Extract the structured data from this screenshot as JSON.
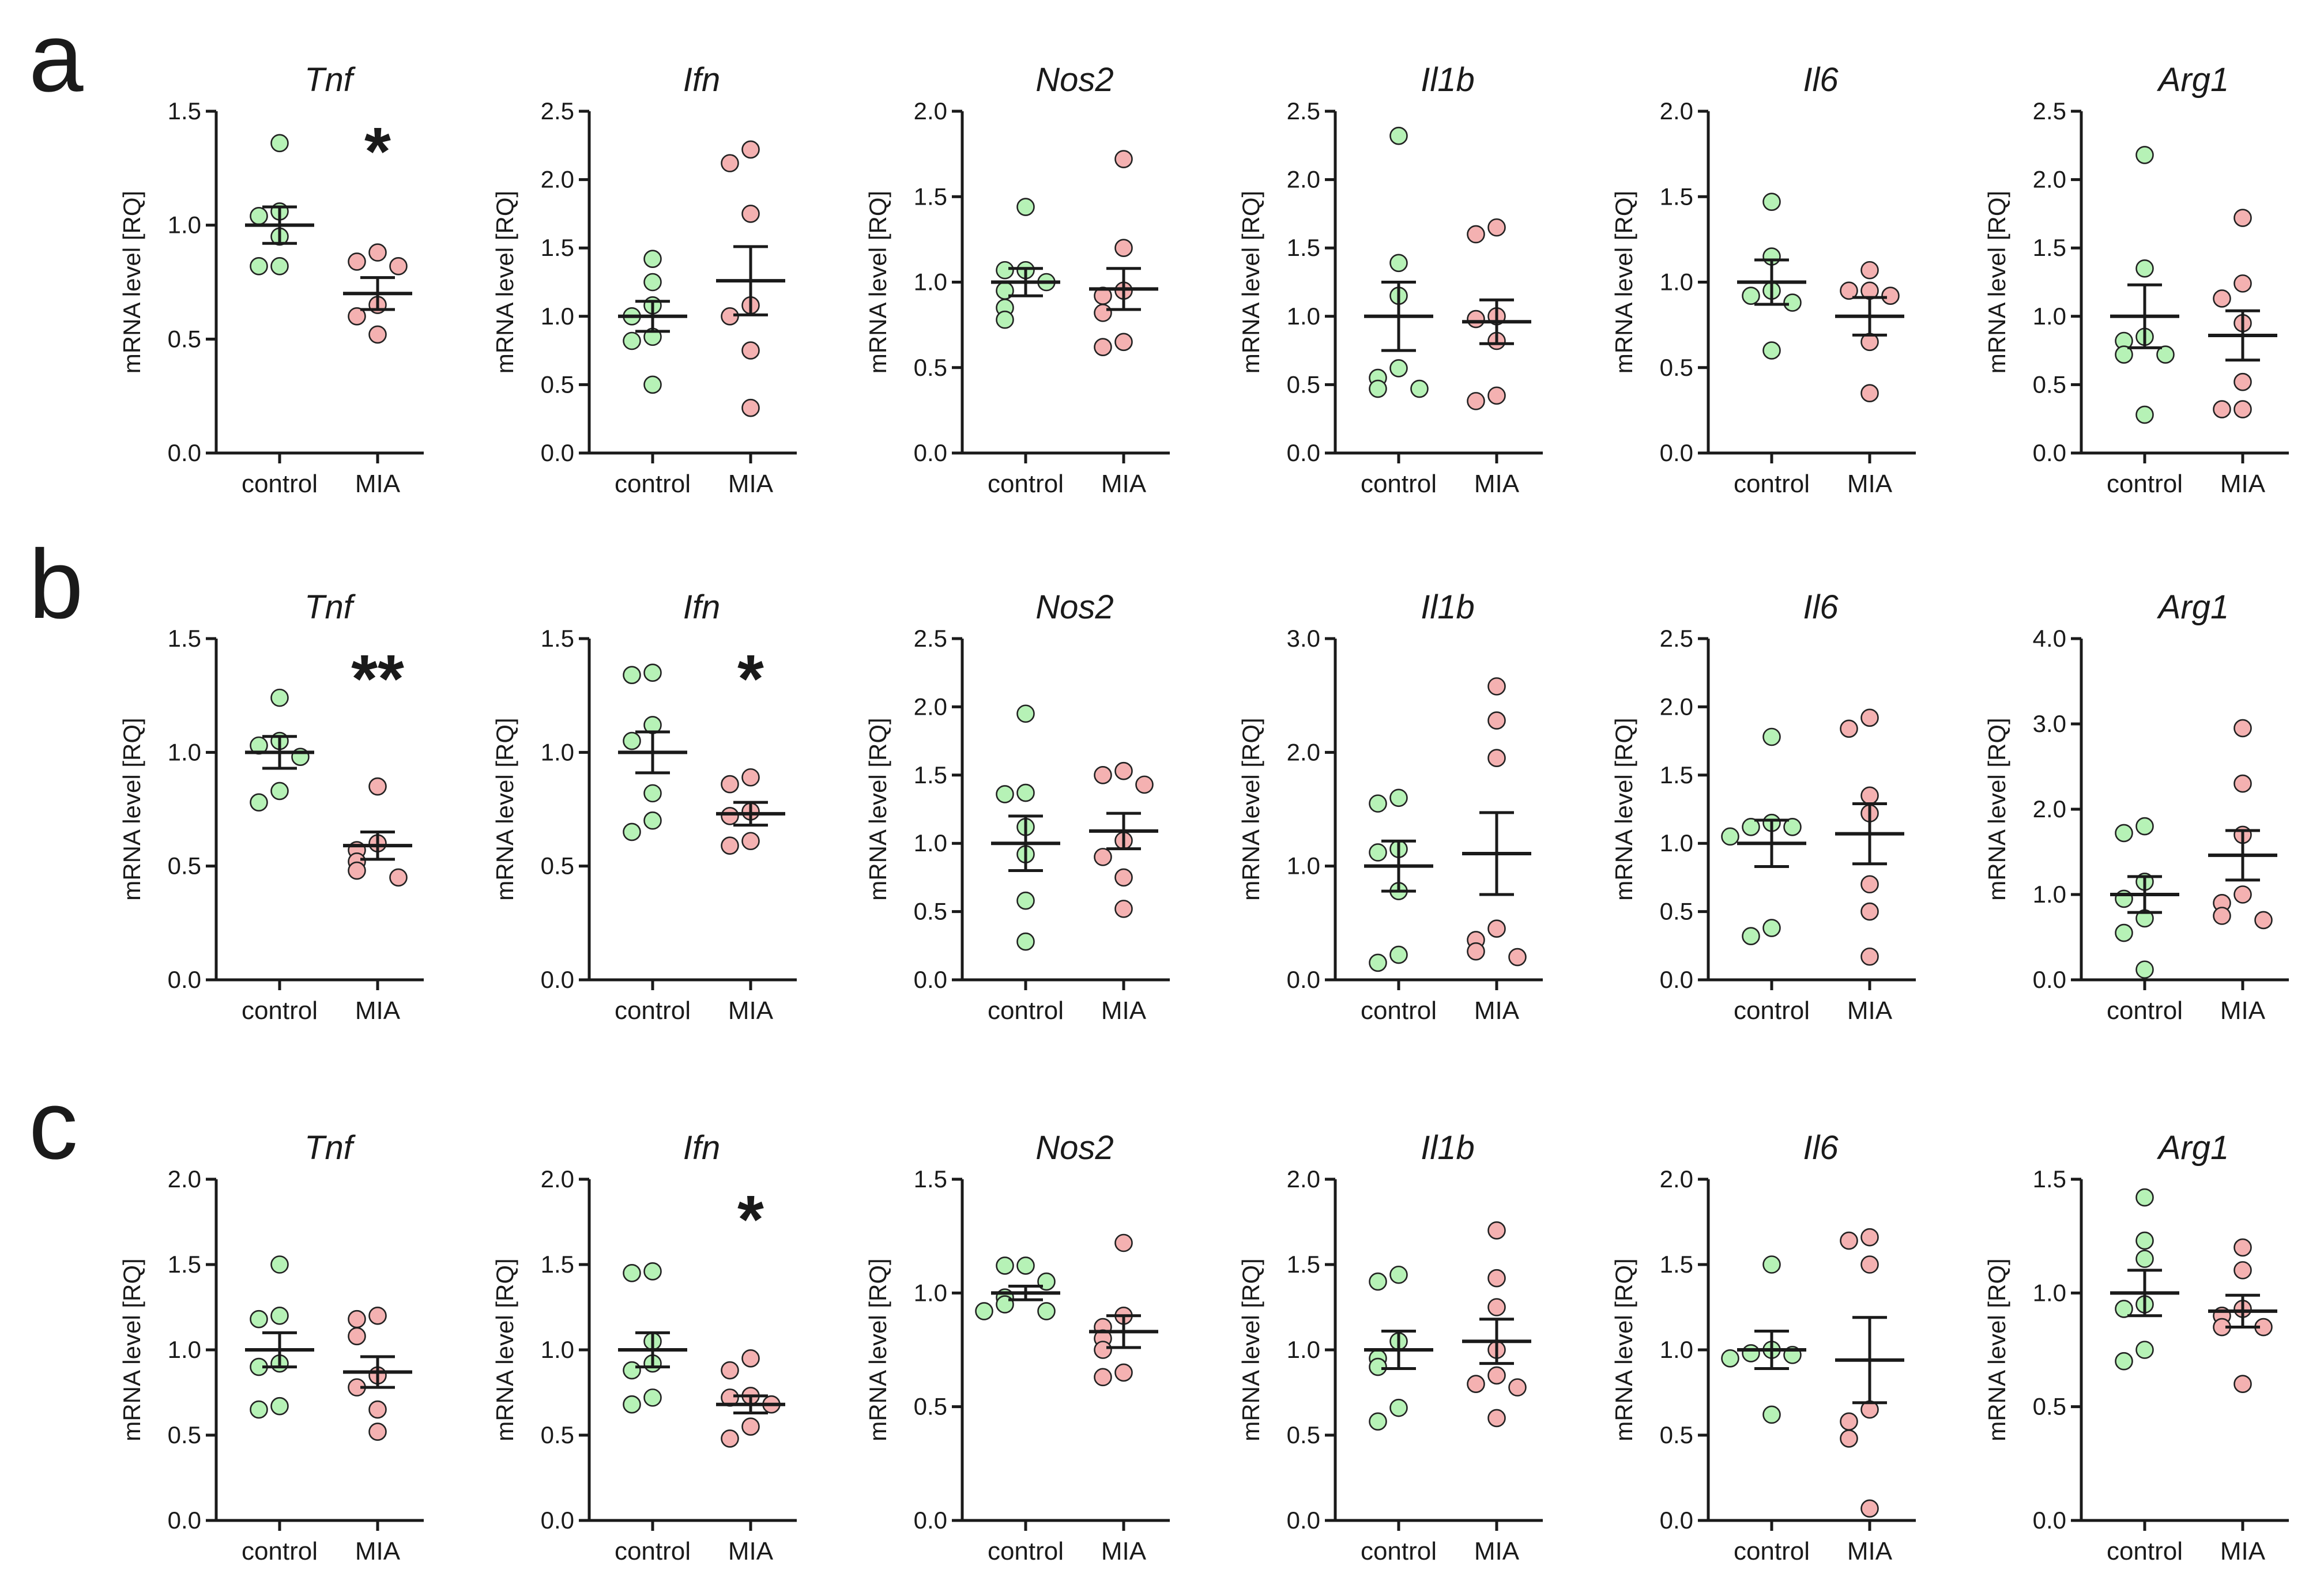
{
  "colors": {
    "control_fill": "#b6f2b6",
    "control_stroke": "#4a9a4a",
    "mia_fill": "#f4b1b1",
    "mia_stroke": "#b04848",
    "axis": "#1a1a1a"
  },
  "panels": [
    {
      "letter": "a"
    },
    {
      "letter": "b"
    },
    {
      "letter": "c"
    }
  ],
  "chart_data": [
    {
      "panel": "a",
      "type": "scatter",
      "title": "Tnf",
      "ylabel": "mRNA level [RQ]",
      "categories": [
        "control",
        "MIA"
      ],
      "ylim": [
        0,
        1.5
      ],
      "yticks": [
        "0.0",
        "0.5",
        "1.0",
        "1.5"
      ],
      "series": [
        {
          "name": "control",
          "values": [
            1.36,
            1.06,
            1.04,
            0.95,
            0.82,
            0.82
          ],
          "mean": 1.0,
          "sem": 0.08
        },
        {
          "name": "MIA",
          "values": [
            0.88,
            0.84,
            0.82,
            0.65,
            0.6,
            0.52
          ],
          "mean": 0.7,
          "sem": 0.07
        }
      ],
      "significance": "*"
    },
    {
      "panel": "a",
      "type": "scatter",
      "title": "Ifn",
      "ylabel": "mRNA level [RQ]",
      "categories": [
        "control",
        "MIA"
      ],
      "ylim": [
        0,
        2.5
      ],
      "yticks": [
        "0.0",
        "0.5",
        "1.0",
        "1.5",
        "2.0",
        "2.5"
      ],
      "series": [
        {
          "name": "control",
          "values": [
            1.42,
            1.25,
            1.08,
            1.0,
            0.85,
            0.82,
            0.5
          ],
          "mean": 1.0,
          "sem": 0.11
        },
        {
          "name": "MIA",
          "values": [
            2.22,
            2.12,
            1.75,
            1.08,
            1.0,
            0.75,
            0.33
          ],
          "mean": 1.26,
          "sem": 0.25
        }
      ],
      "significance": ""
    },
    {
      "panel": "a",
      "type": "scatter",
      "title": "Nos2",
      "ylabel": "mRNA level [RQ]",
      "categories": [
        "control",
        "MIA"
      ],
      "ylim": [
        0,
        2.0
      ],
      "yticks": [
        "0.0",
        "0.5",
        "1.0",
        "1.5",
        "2.0"
      ],
      "series": [
        {
          "name": "control",
          "values": [
            1.44,
            1.07,
            1.07,
            1.0,
            0.95,
            0.85,
            0.78
          ],
          "mean": 1.0,
          "sem": 0.08
        },
        {
          "name": "MIA",
          "values": [
            1.72,
            1.2,
            0.95,
            0.92,
            0.82,
            0.65,
            0.62
          ],
          "mean": 0.96,
          "sem": 0.12
        }
      ],
      "significance": ""
    },
    {
      "panel": "a",
      "type": "scatter",
      "title": "Il1b",
      "ylabel": "mRNA level [RQ]",
      "categories": [
        "control",
        "MIA"
      ],
      "ylim": [
        0,
        2.5
      ],
      "yticks": [
        "0.0",
        "0.5",
        "1.0",
        "1.5",
        "2.0",
        "2.5"
      ],
      "series": [
        {
          "name": "control",
          "values": [
            2.32,
            1.39,
            1.15,
            0.62,
            0.55,
            0.47,
            0.47
          ],
          "mean": 1.0,
          "sem": 0.25
        },
        {
          "name": "MIA",
          "values": [
            1.65,
            1.6,
            1.0,
            0.98,
            0.82,
            0.42,
            0.38
          ],
          "mean": 0.96,
          "sem": 0.16
        }
      ],
      "significance": ""
    },
    {
      "panel": "a",
      "type": "scatter",
      "title": "Il6",
      "ylabel": "mRNA level [RQ]",
      "categories": [
        "control",
        "MIA"
      ],
      "ylim": [
        0,
        2.0
      ],
      "yticks": [
        "0.0",
        "0.5",
        "1.0",
        "1.5",
        "2.0"
      ],
      "series": [
        {
          "name": "control",
          "values": [
            1.47,
            1.15,
            0.95,
            0.92,
            0.88,
            0.6
          ],
          "mean": 1.0,
          "sem": 0.13
        },
        {
          "name": "MIA",
          "values": [
            1.07,
            0.95,
            0.95,
            0.92,
            0.65,
            0.35
          ],
          "mean": 0.8,
          "sem": 0.11
        }
      ],
      "significance": ""
    },
    {
      "panel": "a",
      "type": "scatter",
      "title": "Arg1",
      "ylabel": "mRNA level [RQ]",
      "categories": [
        "control",
        "MIA"
      ],
      "ylim": [
        0,
        2.5
      ],
      "yticks": [
        "0.0",
        "0.5",
        "1.0",
        "1.5",
        "2.0",
        "2.5"
      ],
      "series": [
        {
          "name": "control",
          "values": [
            2.18,
            1.35,
            0.85,
            0.82,
            0.72,
            0.72,
            0.28
          ],
          "mean": 1.0,
          "sem": 0.23
        },
        {
          "name": "MIA",
          "values": [
            1.72,
            1.24,
            1.13,
            0.95,
            0.52,
            0.32,
            0.32
          ],
          "mean": 0.86,
          "sem": 0.18
        }
      ],
      "significance": ""
    },
    {
      "panel": "b",
      "type": "scatter",
      "title": "Tnf",
      "ylabel": "mRNA level [RQ]",
      "categories": [
        "control",
        "MIA"
      ],
      "ylim": [
        0,
        1.5
      ],
      "yticks": [
        "0.0",
        "0.5",
        "1.0",
        "1.5"
      ],
      "series": [
        {
          "name": "control",
          "values": [
            1.24,
            1.05,
            1.03,
            0.98,
            0.83,
            0.78
          ],
          "mean": 1.0,
          "sem": 0.07
        },
        {
          "name": "MIA",
          "values": [
            0.85,
            0.6,
            0.57,
            0.52,
            0.48,
            0.45
          ],
          "mean": 0.59,
          "sem": 0.06
        }
      ],
      "significance": "**"
    },
    {
      "panel": "b",
      "type": "scatter",
      "title": "Ifn",
      "ylabel": "mRNA level [RQ]",
      "categories": [
        "control",
        "MIA"
      ],
      "ylim": [
        0,
        1.5
      ],
      "yticks": [
        "0.0",
        "0.5",
        "1.0",
        "1.5"
      ],
      "series": [
        {
          "name": "control",
          "values": [
            1.35,
            1.34,
            1.12,
            1.05,
            0.82,
            0.7,
            0.65
          ],
          "mean": 1.0,
          "sem": 0.09
        },
        {
          "name": "MIA",
          "values": [
            0.89,
            0.86,
            0.74,
            0.72,
            0.61,
            0.59
          ],
          "mean": 0.73,
          "sem": 0.05
        }
      ],
      "significance": "*"
    },
    {
      "panel": "b",
      "type": "scatter",
      "title": "Nos2",
      "ylabel": "mRNA level [RQ]",
      "categories": [
        "control",
        "MIA"
      ],
      "ylim": [
        0,
        2.5
      ],
      "yticks": [
        "0.0",
        "0.5",
        "1.0",
        "1.5",
        "2.0",
        "2.5"
      ],
      "series": [
        {
          "name": "control",
          "values": [
            1.95,
            1.37,
            1.36,
            1.12,
            0.92,
            0.58,
            0.28
          ],
          "mean": 1.0,
          "sem": 0.2
        },
        {
          "name": "MIA",
          "values": [
            1.53,
            1.5,
            1.43,
            1.02,
            0.9,
            0.75,
            0.52
          ],
          "mean": 1.09,
          "sem": 0.13
        }
      ],
      "significance": ""
    },
    {
      "panel": "b",
      "type": "scatter",
      "title": "Il1b",
      "ylabel": "mRNA level [RQ]",
      "categories": [
        "control",
        "MIA"
      ],
      "ylim": [
        0,
        3.0
      ],
      "yticks": [
        "0.0",
        "1.0",
        "2.0",
        "3.0"
      ],
      "series": [
        {
          "name": "control",
          "values": [
            1.6,
            1.55,
            1.15,
            1.12,
            0.78,
            0.22,
            0.15
          ],
          "mean": 1.0,
          "sem": 0.22
        },
        {
          "name": "MIA",
          "values": [
            2.58,
            2.28,
            1.95,
            0.45,
            0.35,
            0.25,
            0.2
          ],
          "mean": 1.11,
          "sem": 0.36
        }
      ],
      "significance": ""
    },
    {
      "panel": "b",
      "type": "scatter",
      "title": "Il6",
      "ylabel": "mRNA level [RQ]",
      "categories": [
        "control",
        "MIA"
      ],
      "ylim": [
        0,
        2.5
      ],
      "yticks": [
        "0.0",
        "0.5",
        "1.0",
        "1.5",
        "2.0",
        "2.5"
      ],
      "series": [
        {
          "name": "control",
          "values": [
            1.78,
            1.15,
            1.12,
            1.12,
            1.05,
            0.38,
            0.32
          ],
          "mean": 1.0,
          "sem": 0.17
        },
        {
          "name": "MIA",
          "values": [
            1.92,
            1.84,
            1.35,
            1.22,
            0.7,
            0.5,
            0.17
          ],
          "mean": 1.07,
          "sem": 0.22
        }
      ],
      "significance": ""
    },
    {
      "panel": "b",
      "type": "scatter",
      "title": "Arg1",
      "ylabel": "mRNA level [RQ]",
      "categories": [
        "control",
        "MIA"
      ],
      "ylim": [
        0,
        4.0
      ],
      "yticks": [
        "0.0",
        "1.0",
        "2.0",
        "3.0",
        "4.0"
      ],
      "series": [
        {
          "name": "control",
          "values": [
            1.8,
            1.72,
            1.15,
            0.95,
            0.72,
            0.55,
            0.12
          ],
          "mean": 1.0,
          "sem": 0.21
        },
        {
          "name": "MIA",
          "values": [
            2.95,
            2.3,
            1.7,
            1.0,
            0.9,
            0.75,
            0.7
          ],
          "mean": 1.46,
          "sem": 0.29
        }
      ],
      "significance": ""
    },
    {
      "panel": "c",
      "type": "scatter",
      "title": "Tnf",
      "ylabel": "mRNA level [RQ]",
      "categories": [
        "control",
        "MIA"
      ],
      "ylim": [
        0,
        2.0
      ],
      "yticks": [
        "0.0",
        "0.5",
        "1.0",
        "1.5",
        "2.0"
      ],
      "series": [
        {
          "name": "control",
          "values": [
            1.5,
            1.2,
            1.18,
            0.92,
            0.9,
            0.67,
            0.65
          ],
          "mean": 1.0,
          "sem": 0.1
        },
        {
          "name": "MIA",
          "values": [
            1.2,
            1.18,
            1.08,
            0.85,
            0.78,
            0.65,
            0.52
          ],
          "mean": 0.87,
          "sem": 0.09
        }
      ],
      "significance": ""
    },
    {
      "panel": "c",
      "type": "scatter",
      "title": "Ifn",
      "ylabel": "mRNA level [RQ]",
      "categories": [
        "control",
        "MIA"
      ],
      "ylim": [
        0,
        2.0
      ],
      "yticks": [
        "0.0",
        "0.5",
        "1.0",
        "1.5",
        "2.0"
      ],
      "series": [
        {
          "name": "control",
          "values": [
            1.46,
            1.45,
            1.05,
            0.92,
            0.88,
            0.72,
            0.68
          ],
          "mean": 1.0,
          "sem": 0.1
        },
        {
          "name": "MIA",
          "values": [
            0.95,
            0.88,
            0.73,
            0.72,
            0.68,
            0.55,
            0.48
          ],
          "mean": 0.68,
          "sem": 0.05
        }
      ],
      "significance": "*"
    },
    {
      "panel": "c",
      "type": "scatter",
      "title": "Nos2",
      "ylabel": "mRNA level [RQ]",
      "categories": [
        "control",
        "MIA"
      ],
      "ylim": [
        0,
        1.5
      ],
      "yticks": [
        "0.0",
        "0.5",
        "1.0",
        "1.5"
      ],
      "series": [
        {
          "name": "control",
          "values": [
            1.12,
            1.12,
            1.05,
            0.98,
            0.95,
            0.92,
            0.92
          ],
          "mean": 1.0,
          "sem": 0.03
        },
        {
          "name": "MIA",
          "values": [
            1.22,
            0.9,
            0.85,
            0.8,
            0.75,
            0.65,
            0.63
          ],
          "mean": 0.83,
          "sem": 0.07
        }
      ],
      "significance": ""
    },
    {
      "panel": "c",
      "type": "scatter",
      "title": "Il1b",
      "ylabel": "mRNA level [RQ]",
      "categories": [
        "control",
        "MIA"
      ],
      "ylim": [
        0,
        2.0
      ],
      "yticks": [
        "0.0",
        "0.5",
        "1.0",
        "1.5",
        "2.0"
      ],
      "series": [
        {
          "name": "control",
          "values": [
            1.44,
            1.4,
            1.05,
            0.95,
            0.9,
            0.66,
            0.58
          ],
          "mean": 1.0,
          "sem": 0.11
        },
        {
          "name": "MIA",
          "values": [
            1.7,
            1.42,
            1.25,
            1.0,
            0.85,
            0.8,
            0.78,
            0.6
          ],
          "mean": 1.05,
          "sem": 0.13
        }
      ],
      "significance": ""
    },
    {
      "panel": "c",
      "type": "scatter",
      "title": "Il6",
      "ylabel": "mRNA level [RQ]",
      "categories": [
        "control",
        "MIA"
      ],
      "ylim": [
        0,
        2.0
      ],
      "yticks": [
        "0.0",
        "0.5",
        "1.0",
        "1.5",
        "2.0"
      ],
      "series": [
        {
          "name": "control",
          "values": [
            1.5,
            1.0,
            0.98,
            0.97,
            0.95,
            0.62
          ],
          "mean": 1.0,
          "sem": 0.11
        },
        {
          "name": "MIA",
          "values": [
            1.66,
            1.64,
            1.5,
            0.65,
            0.58,
            0.48,
            0.07
          ],
          "mean": 0.94,
          "sem": 0.25
        }
      ],
      "significance": ""
    },
    {
      "panel": "c",
      "type": "scatter",
      "title": "Arg1",
      "ylabel": "mRNA level [RQ]",
      "categories": [
        "control",
        "MIA"
      ],
      "ylim": [
        0,
        1.5
      ],
      "yticks": [
        "0.0",
        "0.5",
        "1.0",
        "1.5"
      ],
      "series": [
        {
          "name": "control",
          "values": [
            1.42,
            1.23,
            1.15,
            0.95,
            0.93,
            0.75,
            0.7
          ],
          "mean": 1.0,
          "sem": 0.1
        },
        {
          "name": "MIA",
          "values": [
            1.2,
            1.1,
            0.93,
            0.9,
            0.85,
            0.85,
            0.6
          ],
          "mean": 0.92,
          "sem": 0.07
        }
      ],
      "significance": ""
    }
  ]
}
